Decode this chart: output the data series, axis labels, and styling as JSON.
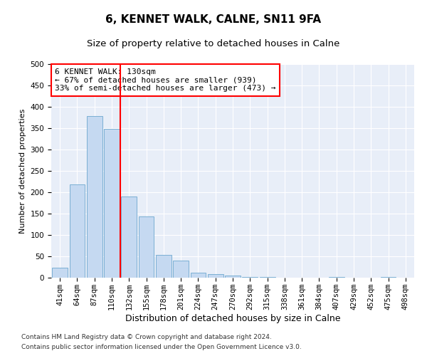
{
  "title": "6, KENNET WALK, CALNE, SN11 9FA",
  "subtitle": "Size of property relative to detached houses in Calne",
  "xlabel": "Distribution of detached houses by size in Calne",
  "ylabel": "Number of detached properties",
  "categories": [
    "41sqm",
    "64sqm",
    "87sqm",
    "110sqm",
    "132sqm",
    "155sqm",
    "178sqm",
    "201sqm",
    "224sqm",
    "247sqm",
    "270sqm",
    "292sqm",
    "315sqm",
    "338sqm",
    "361sqm",
    "384sqm",
    "407sqm",
    "429sqm",
    "452sqm",
    "475sqm",
    "498sqm"
  ],
  "values": [
    24,
    218,
    378,
    348,
    190,
    143,
    54,
    40,
    11,
    8,
    5,
    2,
    1,
    0,
    0,
    0,
    2,
    0,
    0,
    2,
    0
  ],
  "bar_color": "#c5d9f1",
  "bar_edge_color": "#7bafd4",
  "vline_x_index": 3.5,
  "vline_color": "red",
  "annotation_text": "6 KENNET WALK: 130sqm\n← 67% of detached houses are smaller (939)\n33% of semi-detached houses are larger (473) →",
  "annotation_box_color": "white",
  "annotation_box_edge": "red",
  "ylim": [
    0,
    500
  ],
  "yticks": [
    0,
    50,
    100,
    150,
    200,
    250,
    300,
    350,
    400,
    450,
    500
  ],
  "bg_color": "#e8eef8",
  "footer1": "Contains HM Land Registry data © Crown copyright and database right 2024.",
  "footer2": "Contains public sector information licensed under the Open Government Licence v3.0.",
  "title_fontsize": 11,
  "subtitle_fontsize": 9.5,
  "xlabel_fontsize": 9,
  "ylabel_fontsize": 8,
  "tick_fontsize": 7.5
}
